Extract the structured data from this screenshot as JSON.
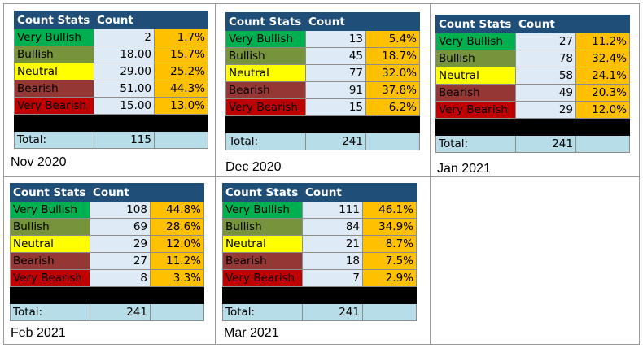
{
  "header": {
    "col1": "Count Stats",
    "col2": "Count"
  },
  "category_colors": {
    "very_bullish": "#00b050",
    "bullish": "#77933c",
    "neutral": "#ffff00",
    "bearish": "#953735",
    "very_bearish": "#c00000"
  },
  "panels": [
    {
      "caption": "Nov 2020",
      "rows": [
        {
          "label": "Very Bullish",
          "count": "2",
          "pct": "1.7%"
        },
        {
          "label": "Bullish",
          "count": "18.00",
          "pct": "15.7%"
        },
        {
          "label": "Neutral",
          "count": "29.00",
          "pct": "25.2%"
        },
        {
          "label": "Bearish",
          "count": "51.00",
          "pct": "44.3%"
        },
        {
          "label": "Very Bearish",
          "count": "15.00",
          "pct": "13.0%"
        }
      ],
      "total_label": "Total:",
      "total": "115"
    },
    {
      "caption": "Dec 2020",
      "rows": [
        {
          "label": "Very Bullish",
          "count": "13",
          "pct": "5.4%"
        },
        {
          "label": "Bullish",
          "count": "45",
          "pct": "18.7%"
        },
        {
          "label": "Neutral",
          "count": "77",
          "pct": "32.0%"
        },
        {
          "label": "Bearish",
          "count": "91",
          "pct": "37.8%"
        },
        {
          "label": "Very Bearish",
          "count": "15",
          "pct": "6.2%"
        }
      ],
      "total_label": "Total:",
      "total": "241"
    },
    {
      "caption": "Jan 2021",
      "rows": [
        {
          "label": "Very Bullish",
          "count": "27",
          "pct": "11.2%"
        },
        {
          "label": "Bullish",
          "count": "78",
          "pct": "32.4%"
        },
        {
          "label": "Neutral",
          "count": "58",
          "pct": "24.1%"
        },
        {
          "label": "Bearish",
          "count": "49",
          "pct": "20.3%"
        },
        {
          "label": "Very Bearish",
          "count": "29",
          "pct": "12.0%"
        }
      ],
      "total_label": "Total:",
      "total": "241"
    },
    {
      "caption": "Feb 2021",
      "rows": [
        {
          "label": "Very Bullish",
          "count": "108",
          "pct": "44.8%"
        },
        {
          "label": "Bullish",
          "count": "69",
          "pct": "28.6%"
        },
        {
          "label": "Neutral",
          "count": "29",
          "pct": "12.0%"
        },
        {
          "label": "Bearish",
          "count": "27",
          "pct": "11.2%"
        },
        {
          "label": "Very Bearish",
          "count": "8",
          "pct": "3.3%"
        }
      ],
      "total_label": "Total:",
      "total": "241"
    },
    {
      "caption": "Mar 2021",
      "rows": [
        {
          "label": "Very Bullish",
          "count": "111",
          "pct": "46.1%"
        },
        {
          "label": "Bullish",
          "count": "84",
          "pct": "34.9%"
        },
        {
          "label": "Neutral",
          "count": "21",
          "pct": "8.7%"
        },
        {
          "label": "Bearish",
          "count": "18",
          "pct": "7.5%"
        },
        {
          "label": "Very Bearish",
          "count": "7",
          "pct": "2.9%"
        }
      ],
      "total_label": "Total:",
      "total": "241"
    }
  ]
}
